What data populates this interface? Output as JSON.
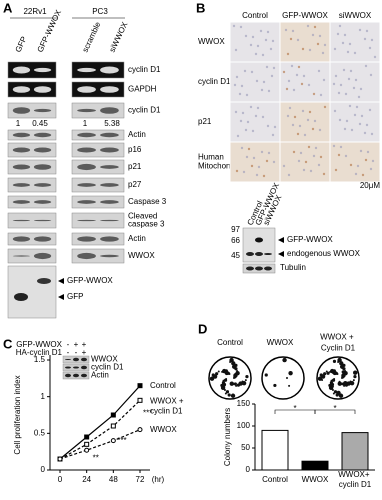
{
  "panel_a": {
    "label": "A",
    "groups": [
      "22Rv1",
      "PC3"
    ],
    "lanes": [
      [
        "GFP",
        "GFP-WWOX"
      ],
      [
        "scramble",
        "siWWOX"
      ]
    ],
    "rows": [
      "cyclin D1",
      "GAPDH",
      "cyclin D1",
      "Actin",
      "p16",
      "p21",
      "p27",
      "Caspase 3",
      "Cleaved caspase 3",
      "Actin",
      "WWOX"
    ],
    "quant": [
      [
        "1",
        "0.45"
      ],
      [
        "1",
        "5.38"
      ]
    ],
    "arrows": [
      "GFP-WWOX",
      "GFP"
    ]
  },
  "panel_b": {
    "label": "B",
    "columns": [
      "Control",
      "GFP-WWOX",
      "siWWOX"
    ],
    "rows": [
      "WWOX",
      "cyclin D1",
      "p21",
      "Human Mitochondria"
    ],
    "scale_bar": "20μM",
    "blot_lanes": [
      "Control",
      "GFP-WWOX",
      "siWWOX"
    ],
    "markers": [
      "97",
      "66",
      "45"
    ],
    "blot_labels": [
      "GFP-WWOX",
      "endogenous WWOX",
      "Tubulin"
    ]
  },
  "chart_data": [
    {
      "type": "line",
      "label": "C",
      "x": [
        0,
        24,
        48,
        72
      ],
      "xlim": [
        0,
        72
      ],
      "xticks": [
        0,
        24,
        48,
        72
      ],
      "xlabel": "(hr)",
      "ylabel": "Cell proliferation index",
      "ylim": [
        0,
        1.5
      ],
      "yticks": [
        0,
        0.5,
        1,
        1.5
      ],
      "series": [
        {
          "name": "Control",
          "color": "#000000",
          "dashed": false,
          "values": [
            0.15,
            0.45,
            0.75,
            1.15
          ]
        },
        {
          "name": "WWOX + cyclin D1",
          "color": "#000000",
          "dashed": true,
          "values": [
            0.15,
            0.35,
            0.6,
            0.95
          ]
        },
        {
          "name": "WWOX",
          "color": "#000000",
          "dashed": true,
          "values": [
            0.15,
            0.27,
            0.4,
            0.55
          ]
        }
      ],
      "annotations": [
        "**",
        "***",
        "***"
      ],
      "inset": {
        "rows": [
          "GFP-WWOX",
          "HA-cyclin D1"
        ],
        "signs": [
          [
            "-",
            "+",
            "+"
          ],
          [
            "-",
            "-",
            "+"
          ]
        ],
        "blots": [
          "WWOX",
          "cyclin D1",
          "Actin"
        ]
      }
    },
    {
      "type": "bar",
      "label": "D",
      "top_labels": [
        "Control",
        "WWOX",
        "WWOX + Cyclin D1"
      ],
      "categories": [
        "Control",
        "WWOX",
        "WWOX+ cyclin D1"
      ],
      "values": [
        90,
        20,
        85
      ],
      "colors": [
        "#ffffff",
        "#000000",
        "#aaaaaa"
      ],
      "ylim": [
        0,
        150
      ],
      "yticks": [
        0,
        50,
        100,
        150
      ],
      "ylabel": "Colony numbers",
      "annotations": [
        "*",
        "*"
      ]
    }
  ]
}
